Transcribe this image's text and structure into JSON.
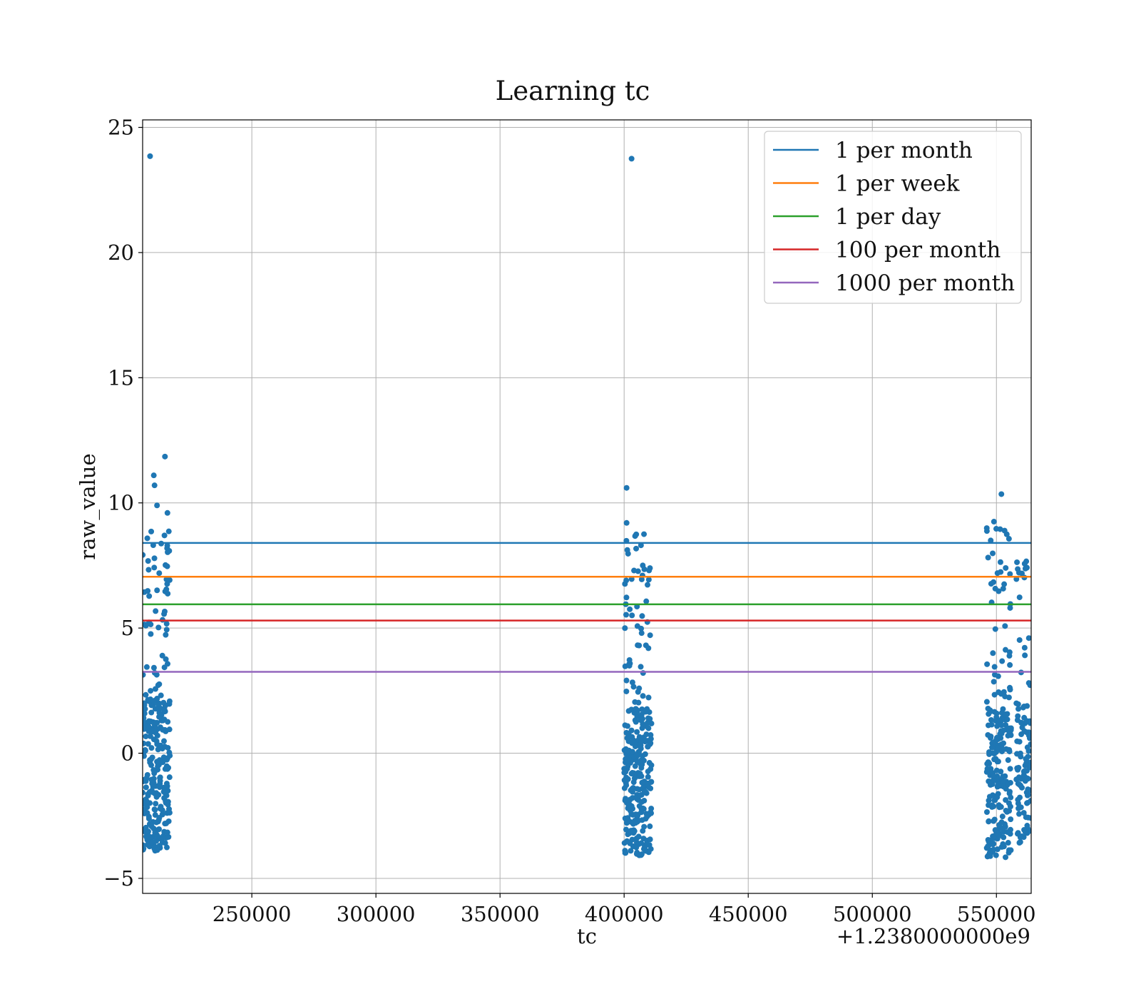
{
  "chart_data": {
    "type": "scatter",
    "title": "Learning tc",
    "xlabel": "tc",
    "ylabel": "raw_value",
    "x_offset_label": "+1.2380000000e9",
    "xlim": [
      1238206000,
      1238564000
    ],
    "ylim": [
      -5.6,
      25.3
    ],
    "xtick_values": [
      250000,
      300000,
      350000,
      400000,
      450000,
      500000,
      550000
    ],
    "xtick_labels": [
      "250000",
      "300000",
      "350000",
      "400000",
      "450000",
      "500000",
      "550000"
    ],
    "ytick_values": [
      -5,
      0,
      5,
      10,
      15,
      20,
      25
    ],
    "ytick_labels": [
      "−5",
      "0",
      "5",
      "10",
      "15",
      "20",
      "25"
    ],
    "grid": true,
    "legend_position": "top-right",
    "series": [
      {
        "name": "raw_value",
        "color": "#1f77b4",
        "clusters": [
          {
            "x_range": [
              1238206000,
              1238217000
            ],
            "y_range": [
              -3.9,
              2.2
            ],
            "count": 240
          },
          {
            "x_range": [
              1238206000,
              1238217000
            ],
            "y_range": [
              2.2,
              9.0
            ],
            "count": 55
          },
          {
            "x_range": [
              1238400000,
              1238411000
            ],
            "y_range": [
              -4.1,
              1.8
            ],
            "count": 240
          },
          {
            "x_range": [
              1238400000,
              1238411000
            ],
            "y_range": [
              1.8,
              8.9
            ],
            "count": 55
          },
          {
            "x_range": [
              1238546000,
              1238556000
            ],
            "y_range": [
              -4.2,
              1.8
            ],
            "count": 200
          },
          {
            "x_range": [
              1238546000,
              1238556000
            ],
            "y_range": [
              1.8,
              9.2
            ],
            "count": 45
          },
          {
            "x_range": [
              1238558000,
              1238564000
            ],
            "y_range": [
              -3.6,
              2.0
            ],
            "count": 90
          },
          {
            "x_range": [
              1238558000,
              1238564000
            ],
            "y_range": [
              2.0,
              7.7
            ],
            "count": 18
          }
        ],
        "points": [
          {
            "x": 1238209000,
            "y": 23.85
          },
          {
            "x": 1238403000,
            "y": 23.75
          },
          {
            "x": 1238215000,
            "y": 11.85
          },
          {
            "x": 1238210500,
            "y": 11.1
          },
          {
            "x": 1238210800,
            "y": 10.7
          },
          {
            "x": 1238211800,
            "y": 9.9
          },
          {
            "x": 1238216000,
            "y": 9.6
          },
          {
            "x": 1238214800,
            "y": 8.7
          },
          {
            "x": 1238401000,
            "y": 10.6
          },
          {
            "x": 1238401000,
            "y": 9.2
          },
          {
            "x": 1238408000,
            "y": 8.75
          },
          {
            "x": 1238552000,
            "y": 10.35
          },
          {
            "x": 1238549000,
            "y": 9.25
          },
          {
            "x": 1238551500,
            "y": 8.95
          }
        ]
      }
    ],
    "reference_lines": [
      {
        "name": "1 per month",
        "y": 8.4,
        "color": "#1f77b4"
      },
      {
        "name": "1 per week",
        "y": 7.05,
        "color": "#ff7f0e"
      },
      {
        "name": "1 per day",
        "y": 5.95,
        "color": "#2ca02c"
      },
      {
        "name": "100 per month",
        "y": 5.3,
        "color": "#d62728"
      },
      {
        "name": "1000 per month",
        "y": 3.25,
        "color": "#9467bd"
      }
    ]
  }
}
